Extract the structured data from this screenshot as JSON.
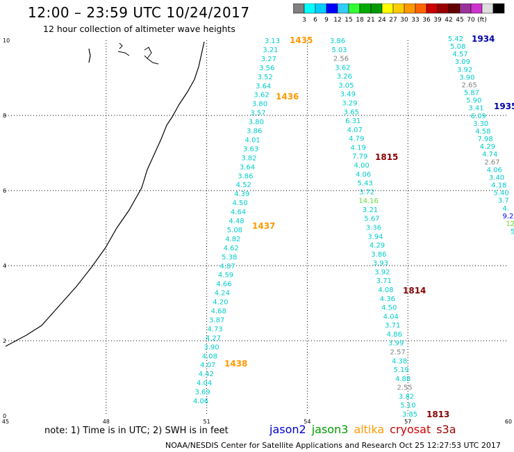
{
  "title": "12:00 – 23:59 UTC 10/24/2017",
  "subtitle": "12 hour collection of altimeter wave heights",
  "scale": {
    "colors": [
      "#808080",
      "#00ffff",
      "#00ccff",
      "#0000ff",
      "#33ccff",
      "#33ff33",
      "#00aa00",
      "#009900",
      "#ffff00",
      "#ffcc00",
      "#ff9900",
      "#ff6600",
      "#cc0000",
      "#990000",
      "#660000",
      "#993399",
      "#cc33cc",
      "#dddddd",
      "#000000"
    ],
    "labels": [
      "3",
      "6",
      "9",
      "12",
      "15",
      "18",
      "21",
      "24",
      "27",
      "30",
      "33",
      "36",
      "39",
      "42",
      "45",
      "70",
      "(ft)"
    ]
  },
  "axes": {
    "x_ticks": [
      "45",
      "48",
      "51",
      "54",
      "57",
      "60"
    ],
    "y_ticks": [
      "0",
      "2",
      "4",
      "6",
      "8",
      "10"
    ]
  },
  "passes": [
    {
      "label": "1435",
      "color": "#ff9900"
    },
    {
      "label": "1436",
      "color": "#ff9900"
    },
    {
      "label": "1437",
      "color": "#ff9900"
    },
    {
      "label": "1438",
      "color": "#ff9900"
    },
    {
      "label": "1815",
      "color": "#880000"
    },
    {
      "label": "1814",
      "color": "#880000"
    },
    {
      "label": "1813",
      "color": "#880000"
    },
    {
      "label": "1934",
      "color": "#0000aa"
    },
    {
      "label": "1935",
      "color": "#0000aa"
    }
  ],
  "track_a": [
    "3.13",
    "3.21",
    "3.27",
    "3.56",
    "3.52",
    "3.64",
    "3.62",
    "3.80",
    "3.57",
    "3.80",
    "3.86",
    "4.01",
    "3.63",
    "3.82",
    "3.64",
    "3.86",
    "4.52",
    "4.39",
    "4.50",
    "4.64",
    "4.48",
    "5.08",
    "4.82",
    "4.62",
    "5.38",
    "4.87",
    "4.59",
    "4.66",
    "4.24",
    "4.20",
    "4.68",
    "3.87",
    "4.73",
    "4.27",
    "3.90",
    "4.08",
    "4.07",
    "4.42",
    "4.04",
    "3.69",
    "4.06"
  ],
  "track_b": [
    "3.86",
    "5.03",
    "2.56",
    "3.62",
    "3.26",
    "3.05",
    "3.49",
    "3.29",
    "3.65",
    "6.31",
    "4.07",
    "4.79",
    "4.19",
    "7.79",
    "4.00",
    "4.06",
    "5.43",
    "3.72",
    "14.16",
    "3.21",
    "5.67",
    "3.36",
    "3.94",
    "4.29",
    "3.86",
    "3.93",
    "3.92",
    "3.71",
    "4.08",
    "4.36",
    "4.50",
    "4.04",
    "3.71",
    "4.86",
    "3.99",
    "2.57",
    "4.38",
    "5.19",
    "4.88",
    "2.55",
    "3.82",
    "5.10",
    "3.85"
  ],
  "track_c": [
    "5.42",
    "5.08",
    "4.57",
    "3.09",
    "3.92",
    "3.90",
    "2.65",
    "5.87",
    "5.90",
    "3.41",
    "6.09",
    "3.30",
    "4.58",
    "7.98",
    "4.29",
    "4.74",
    "2.67",
    "4.06",
    "3.40",
    "4.18",
    "5.40",
    "3.7",
    "4.",
    "9.2",
    "12",
    "5"
  ],
  "note": "note:  1) Time is in UTC;  2) SWH is in feet",
  "satellites": [
    {
      "name": "jason2",
      "color": "#0000cc"
    },
    {
      "name": "jason3",
      "color": "#009900"
    },
    {
      "name": "altika",
      "color": "#ff9900"
    },
    {
      "name": "cryosat",
      "color": "#cc0000"
    },
    {
      "name": "s3a",
      "color": "#990000"
    }
  ],
  "credit": "NOAA/NESDIS Center for Satellite Applications and Research     Oct 25 12:27:53 UTC 2017"
}
